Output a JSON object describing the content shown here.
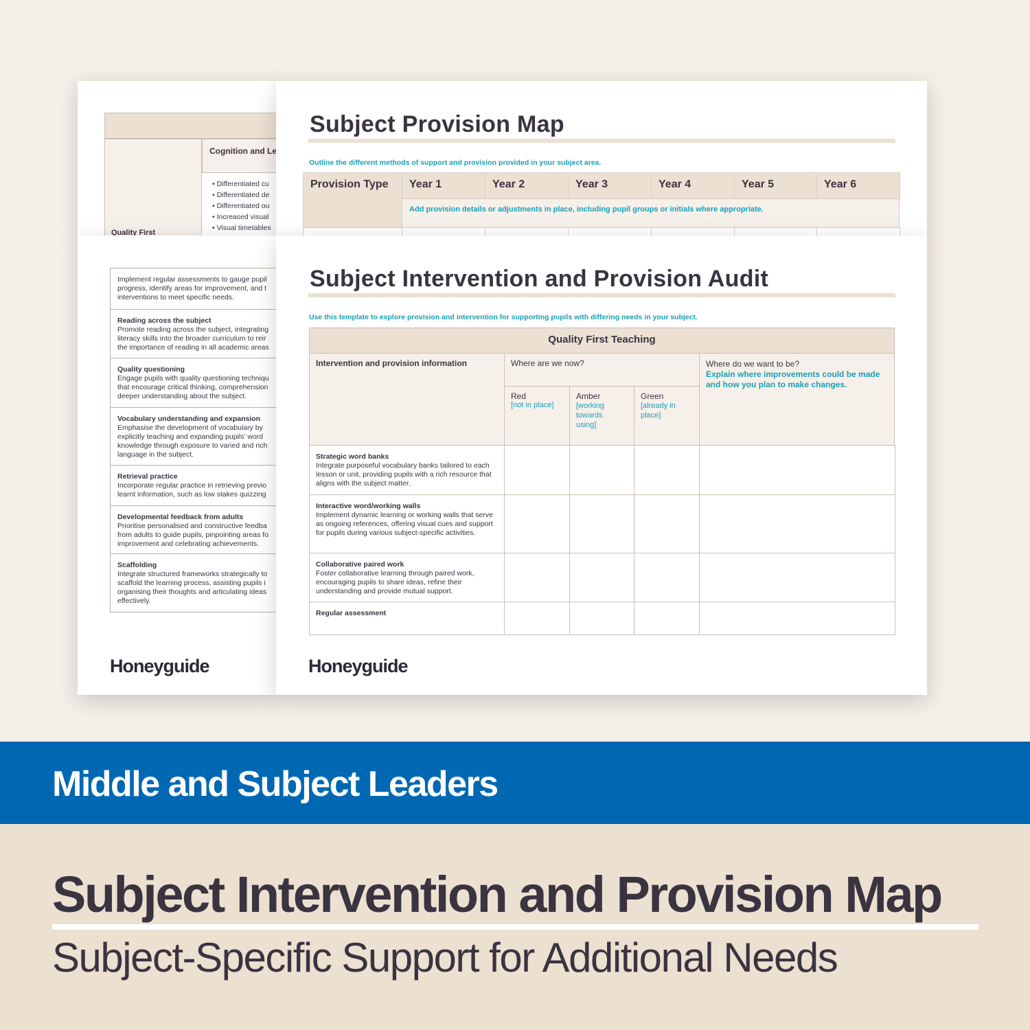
{
  "colors": {
    "background": "#f5efe9",
    "band": "#0068b3",
    "footer": "#ece0d1",
    "accent": "#1a9fb5",
    "header_fill": "#ebe0d2"
  },
  "back_left": {
    "column_header": "Cognition and Le",
    "row_label": "Quality First",
    "bullets": [
      "Differentiated cu",
      "Differentiated de",
      "Differentiated ou",
      "Increased visual",
      "Visual timetables"
    ]
  },
  "provision_map": {
    "title": "Subject Provision Map",
    "subtitle": "Outline the different methods of support and provision provided in your subject area.",
    "headers": [
      "Provision Type",
      "Year 1",
      "Year 2",
      "Year 3",
      "Year 4",
      "Year 5",
      "Year 6"
    ],
    "hint": "Add provision details or adjustments in place, including pupil groups or initials where appropriate."
  },
  "left_list": [
    {
      "title": "",
      "text": "Implement regular assessments to gauge pupil\nprogress, identify areas for improvement, and t\ninterventions to meet specific needs."
    },
    {
      "title": "Reading across the subject",
      "text": "Promote reading across the subject, integrating\nliteracy skills into the broader curriculum to reir\nthe importance of reading in all academic areas"
    },
    {
      "title": "Quality questioning",
      "text": "Engage pupils with quality questioning techniqu\nthat encourage critical thinking, comprehension\ndeeper understanding about the subject."
    },
    {
      "title": "Vocabulary understanding and expansion",
      "text": "Emphasise the development of vocabulary by\nexplicitly teaching and expanding pupils' word\nknowledge through exposure to varied and rich\nlanguage in the subject."
    },
    {
      "title": "Retrieval practice",
      "text": "Incorporate regular practice in retrieving previo\nlearnt information, such as low stakes quizzing"
    },
    {
      "title": "Developmental feedback from adults",
      "text": "Prioritise personalised and constructive feedba\nfrom adults to guide pupils, pinpointing areas fo\nimprovement and celebrating achievements."
    },
    {
      "title": "Scaffolding",
      "text": "Integrate structured frameworks strategically to\nscaffold the learning process, assisting pupils i\norganising their thoughts and articulating ideas\neffectively."
    }
  ],
  "audit": {
    "title": "Subject Intervention and Provision Audit",
    "subtitle": "Use this template to explore provision and intervention for supporting pupils with differing needs in your subject.",
    "section": "Quality First Teaching",
    "col_info": "Intervention and provision information",
    "col_now": "Where are we now?",
    "col_want": "Where do we want to be?",
    "col_want_hint": "Explain where improvements could be made and how you plan to make changes.",
    "red": "Red",
    "red_hint": "[not in place]",
    "amber": "Amber",
    "amber_hint": "[working towards using]",
    "green": "Green",
    "green_hint": "[already in place]",
    "rows": [
      {
        "title": "Strategic word banks",
        "text": "Integrate purposeful vocabulary banks tailored to each lesson or unit, providing pupils with a rich resource that aligns with the subject matter."
      },
      {
        "title": "Interactive word/working walls",
        "text": "Implement dynamic learning or working walls that serve as ongoing references, offering visual cues and support for pupils during various subject-specific activities."
      },
      {
        "title": "Collaborative paired work",
        "text": "Foster collaborative learning through paired work, encouraging pupils to share ideas, refine their understanding and provide mutual support."
      },
      {
        "title": "Regular assessment",
        "text": ""
      }
    ]
  },
  "logo": "Honeyguide",
  "band_text": "Middle and Subject Leaders",
  "product_title": "Subject Intervention and Provision Map",
  "product_subtitle": "Subject-Specific Support for Additional Needs"
}
